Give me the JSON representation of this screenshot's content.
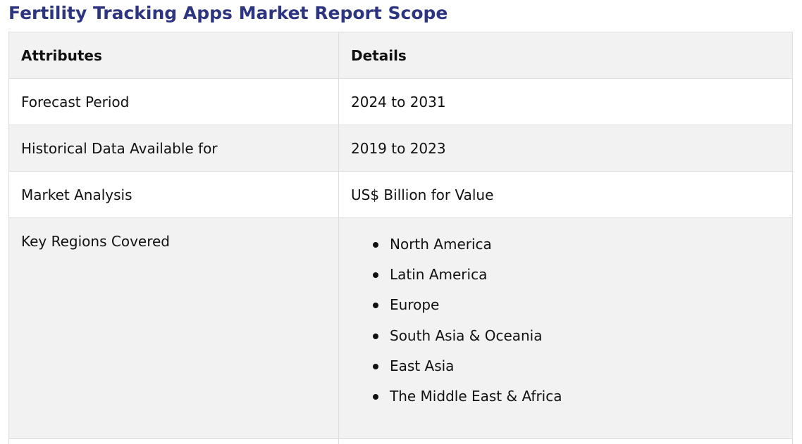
{
  "title": "Fertility Tracking Apps Market Report Scope",
  "table": {
    "headers": {
      "attributes": "Attributes",
      "details": "Details"
    },
    "rows": [
      {
        "attribute": "Forecast Period",
        "detail": "2024 to 2031"
      },
      {
        "attribute": "Historical Data Available for",
        "detail": "2019 to 2023"
      },
      {
        "attribute": "Market Analysis",
        "detail": "US$ Billion for Value"
      }
    ],
    "regions_row": {
      "attribute": "Key Regions Covered",
      "items": [
        "North America",
        "Latin America",
        "Europe",
        "South Asia & Oceania",
        "East Asia",
        "The Middle East & Africa"
      ]
    }
  }
}
